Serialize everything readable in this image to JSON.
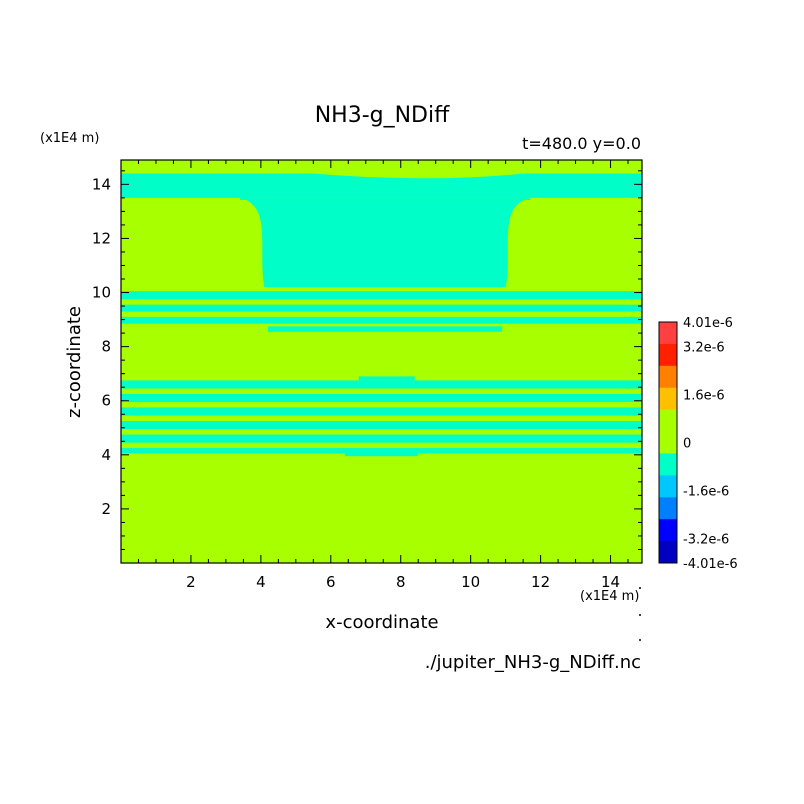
{
  "chart_data": {
    "type": "heatmap",
    "title": "NH3-g_NDiff",
    "subtitle": "t=480.0  y=0.0",
    "xlabel": "x-coordinate",
    "ylabel": "z-coordinate",
    "x_unit": "(x1E4 m)",
    "y_unit": "(x1E4 m)",
    "source": "./jupiter_NH3-g_NDiff.nc",
    "xlim": [
      0,
      14.9
    ],
    "ylim": [
      0,
      14.9
    ],
    "x_ticks": [
      2,
      4,
      6,
      8,
      10,
      12,
      14
    ],
    "y_ticks": [
      2,
      4,
      6,
      8,
      10,
      12,
      14
    ],
    "background_level": "0",
    "background_color": "#a8ff00",
    "cyan_color": "#00ffc8",
    "regions_description_level": "-1.6e-6 to 0",
    "cyan_regions": [
      {
        "kind": "band",
        "x": [
          0,
          14.9
        ],
        "y": [
          13.5,
          14.4
        ]
      },
      {
        "kind": "dome",
        "x_left_base": 4.1,
        "x_right_base": 11.0,
        "x_left_top": 3.4,
        "x_right_top": 11.7,
        "y": [
          10.2,
          13.5
        ]
      },
      {
        "kind": "band",
        "x": [
          0,
          14.9
        ],
        "y": [
          9.75,
          10.05
        ]
      },
      {
        "kind": "band",
        "x": [
          0,
          14.9
        ],
        "y": [
          9.3,
          9.55
        ]
      },
      {
        "kind": "band",
        "x": [
          0,
          14.9
        ],
        "y": [
          8.85,
          9.1
        ]
      },
      {
        "kind": "band",
        "x": [
          4.2,
          10.9
        ],
        "y": [
          8.55,
          8.75
        ]
      },
      {
        "kind": "band",
        "x": [
          0,
          14.9
        ],
        "y": [
          6.45,
          6.75
        ]
      },
      {
        "kind": "band",
        "x": [
          0,
          14.9
        ],
        "y": [
          5.95,
          6.25
        ]
      },
      {
        "kind": "band",
        "x": [
          0,
          14.9
        ],
        "y": [
          5.45,
          5.75
        ]
      },
      {
        "kind": "band",
        "x": [
          0,
          14.9
        ],
        "y": [
          4.95,
          5.25
        ]
      },
      {
        "kind": "band",
        "x": [
          0,
          14.9
        ],
        "y": [
          4.45,
          4.75
        ]
      },
      {
        "kind": "band",
        "x": [
          0,
          14.9
        ],
        "y": [
          4.05,
          4.25
        ]
      },
      {
        "kind": "band",
        "x": [
          6.8,
          8.4
        ],
        "y": [
          6.75,
          6.9
        ]
      },
      {
        "kind": "band",
        "x": [
          6.4,
          8.5
        ],
        "y": [
          3.95,
          4.05
        ]
      }
    ],
    "colorbar": {
      "labels": [
        "4.01e-6",
        "3.2e-6",
        "1.6e-6",
        "0",
        "-1.6e-6",
        "-3.2e-6",
        "-4.01e-6"
      ],
      "label_values": [
        4.01e-06,
        3.2e-06,
        1.6e-06,
        0,
        -1.6e-06,
        -3.2e-06,
        -4.01e-06
      ],
      "colors_top_to_bottom": [
        "#ff4040",
        "#ff2000",
        "#ff8000",
        "#ffc000",
        "#a8ff00",
        "#a8ff00",
        "#00ffc8",
        "#00c8ff",
        "#0080ff",
        "#0000ff",
        "#0000c0"
      ]
    }
  }
}
